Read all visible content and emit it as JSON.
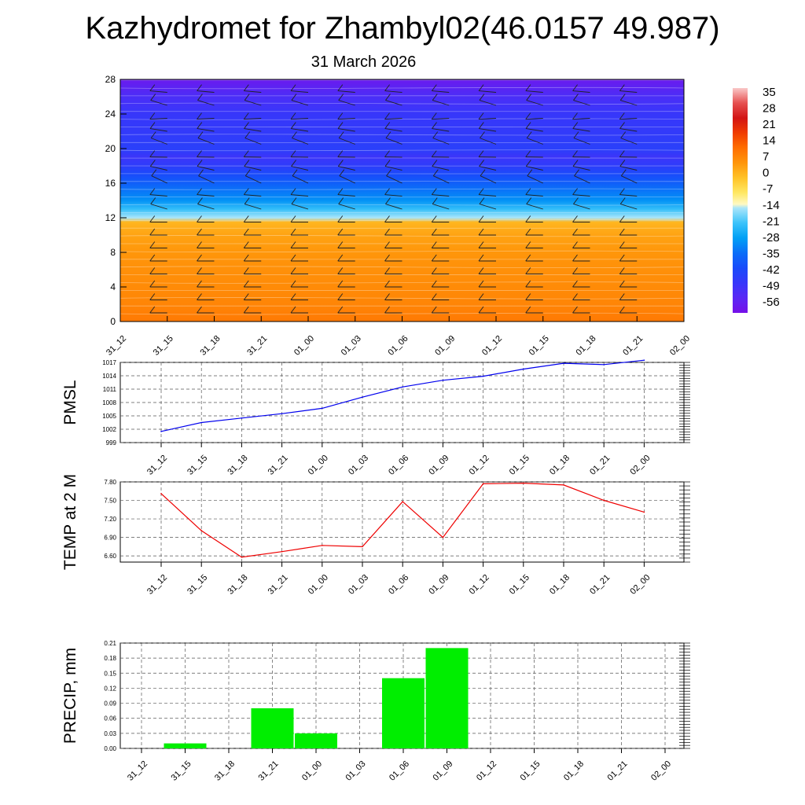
{
  "title": "Kazhydromet for Zhambyl02(46.0157 49.987)",
  "subtitle": "31 March 2026",
  "time_labels": [
    "31_12",
    "31_15",
    "31_18",
    "31_21",
    "01_00",
    "01_03",
    "01_06",
    "01_09",
    "01_12",
    "01_15",
    "01_18",
    "01_21",
    "02_00"
  ],
  "chart_data": [
    {
      "type": "heatmap",
      "title": "",
      "ylabel": "",
      "ylim": [
        0,
        28
      ],
      "yticks": [
        "0",
        "4",
        "8",
        "12",
        "16",
        "20",
        "24",
        "28"
      ],
      "colorbar_ticks": [
        "35",
        "28",
        "21",
        "14",
        "7",
        "0",
        "-7",
        "-14",
        "-21",
        "-28",
        "-35",
        "-42",
        "-49",
        "-56"
      ],
      "colorbar_range": [
        -63,
        42
      ],
      "profile_levels": [
        0,
        2,
        4,
        6,
        8,
        10,
        11.5,
        12,
        13,
        14,
        16,
        17,
        18,
        19,
        20,
        22,
        24,
        26,
        28
      ],
      "profile_temps": [
        12,
        10,
        9,
        8,
        7,
        5,
        2,
        -14,
        -22,
        -30,
        -38,
        -42,
        -47,
        -50,
        -46,
        -48,
        -49,
        -53,
        -60
      ],
      "note": "temperature-height cross section with wind barbs"
    },
    {
      "type": "line",
      "ylabel": "PMSL",
      "ylim": [
        999,
        1017
      ],
      "yticks": [
        "999",
        "1002",
        "1005",
        "1008",
        "1011",
        "1014",
        "1017"
      ],
      "color": "#0000ee",
      "values": [
        1001.5,
        1003.5,
        1004.5,
        1005.5,
        1006.7,
        1009.2,
        1011.5,
        1013.0,
        1013.9,
        1015.5,
        1016.8,
        1016.5,
        1017.5
      ]
    },
    {
      "type": "line",
      "ylabel": "TEMP at 2 M",
      "ylim": [
        6.5,
        7.8
      ],
      "yticks": [
        "6.60",
        "6.90",
        "7.20",
        "7.50",
        "7.80"
      ],
      "color": "#ee0000",
      "values": [
        7.61,
        7.01,
        6.58,
        6.67,
        6.77,
        6.75,
        7.48,
        6.9,
        7.77,
        7.78,
        7.75,
        7.5,
        7.31
      ]
    },
    {
      "type": "bar",
      "ylabel": "PRECIP, mm",
      "ylim": [
        0,
        0.21
      ],
      "yticks": [
        "0.00",
        "0.03",
        "0.06",
        "0.09",
        "0.12",
        "0.15",
        "0.18",
        "0.21"
      ],
      "color": "#00ee00",
      "values": [
        0,
        0.01,
        0,
        0.08,
        0.03,
        0,
        0.14,
        0.2,
        0,
        0,
        0,
        0,
        0
      ]
    }
  ]
}
